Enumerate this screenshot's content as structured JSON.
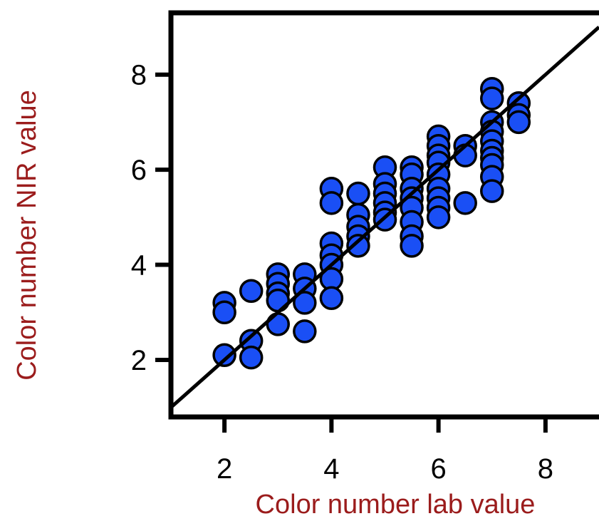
{
  "chart_data": {
    "type": "scatter",
    "title": "",
    "xlabel": "Color number lab value",
    "ylabel": "Color number NIR value",
    "xlim": [
      1.0,
      9.0
    ],
    "ylim": [
      0.8,
      9.3
    ],
    "xticks": [
      2,
      4,
      6,
      8
    ],
    "yticks": [
      2,
      4,
      6,
      8
    ],
    "grid": false,
    "legend": "none",
    "colors": {
      "point_fill": "#1a4ff5",
      "point_edge": "#000000",
      "axis_title": "#9b1c1c",
      "line": "#000000",
      "axes": "#000000"
    },
    "fit_line": {
      "x": [
        1.0,
        9.0
      ],
      "y": [
        1.0,
        9.0
      ]
    },
    "points": [
      {
        "x": 2,
        "y": 3.2
      },
      {
        "x": 2,
        "y": 3.0
      },
      {
        "x": 2,
        "y": 2.1
      },
      {
        "x": 2.5,
        "y": 3.45
      },
      {
        "x": 2.5,
        "y": 2.4
      },
      {
        "x": 2.5,
        "y": 2.05
      },
      {
        "x": 3,
        "y": 3.8
      },
      {
        "x": 3,
        "y": 3.6
      },
      {
        "x": 3,
        "y": 3.4
      },
      {
        "x": 3,
        "y": 3.25
      },
      {
        "x": 3,
        "y": 2.75
      },
      {
        "x": 3.5,
        "y": 3.8
      },
      {
        "x": 3.5,
        "y": 3.5
      },
      {
        "x": 3.5,
        "y": 3.2
      },
      {
        "x": 3.5,
        "y": 2.6
      },
      {
        "x": 4,
        "y": 5.6
      },
      {
        "x": 4,
        "y": 5.3
      },
      {
        "x": 4,
        "y": 4.45
      },
      {
        "x": 4,
        "y": 4.2
      },
      {
        "x": 4,
        "y": 4.0
      },
      {
        "x": 4,
        "y": 3.7
      },
      {
        "x": 4,
        "y": 3.3
      },
      {
        "x": 4.5,
        "y": 5.5
      },
      {
        "x": 4.5,
        "y": 5.05
      },
      {
        "x": 4.5,
        "y": 4.8
      },
      {
        "x": 4.5,
        "y": 4.6
      },
      {
        "x": 4.5,
        "y": 4.4
      },
      {
        "x": 5,
        "y": 6.05
      },
      {
        "x": 5,
        "y": 5.7
      },
      {
        "x": 5,
        "y": 5.5
      },
      {
        "x": 5,
        "y": 5.3
      },
      {
        "x": 5,
        "y": 5.1
      },
      {
        "x": 5,
        "y": 4.95
      },
      {
        "x": 5.5,
        "y": 6.05
      },
      {
        "x": 5.5,
        "y": 5.9
      },
      {
        "x": 5.5,
        "y": 5.6
      },
      {
        "x": 5.5,
        "y": 5.4
      },
      {
        "x": 5.5,
        "y": 5.2
      },
      {
        "x": 5.5,
        "y": 4.9
      },
      {
        "x": 5.5,
        "y": 4.6
      },
      {
        "x": 5.5,
        "y": 4.4
      },
      {
        "x": 6,
        "y": 6.7
      },
      {
        "x": 6,
        "y": 6.5
      },
      {
        "x": 6,
        "y": 6.3
      },
      {
        "x": 6,
        "y": 6.15
      },
      {
        "x": 6,
        "y": 5.9
      },
      {
        "x": 6,
        "y": 5.6
      },
      {
        "x": 6,
        "y": 5.4
      },
      {
        "x": 6,
        "y": 5.2
      },
      {
        "x": 6,
        "y": 5.0
      },
      {
        "x": 6.5,
        "y": 6.5
      },
      {
        "x": 6.5,
        "y": 6.3
      },
      {
        "x": 6.5,
        "y": 5.3
      },
      {
        "x": 7,
        "y": 7.7
      },
      {
        "x": 7,
        "y": 7.5
      },
      {
        "x": 7,
        "y": 7.0
      },
      {
        "x": 7,
        "y": 6.8
      },
      {
        "x": 7,
        "y": 6.6
      },
      {
        "x": 7,
        "y": 6.4
      },
      {
        "x": 7,
        "y": 6.25
      },
      {
        "x": 7,
        "y": 6.1
      },
      {
        "x": 7,
        "y": 5.85
      },
      {
        "x": 7,
        "y": 5.55
      },
      {
        "x": 7.5,
        "y": 7.4
      },
      {
        "x": 7.5,
        "y": 7.15
      },
      {
        "x": 7.5,
        "y": 7.0
      }
    ]
  }
}
